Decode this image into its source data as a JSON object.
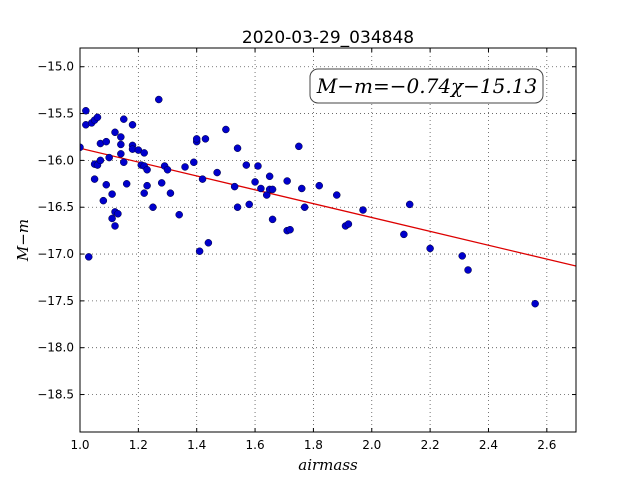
{
  "chart_data": {
    "type": "scatter",
    "title": "2020-03-29_034848",
    "xlabel": "airmass",
    "ylabel": "M−m",
    "annotation": "M−m=−0.74χ−15.13",
    "xlim": [
      1.0,
      2.7
    ],
    "ylim": [
      -18.9,
      -14.8
    ],
    "y_inverted": true,
    "grid": true,
    "xticks": [
      1.0,
      1.2,
      1.4,
      1.6,
      1.8,
      2.0,
      2.2,
      2.4,
      2.6
    ],
    "xtick_labels": [
      "1.0",
      "1.2",
      "1.4",
      "1.6",
      "1.8",
      "2.0",
      "2.2",
      "2.4",
      "2.6"
    ],
    "yticks": [
      -15.0,
      -15.5,
      -16.0,
      -16.5,
      -17.0,
      -17.5,
      -18.0,
      -18.5
    ],
    "ytick_labels": [
      "−15.0",
      "−15.5",
      "−16.0",
      "−16.5",
      "−17.0",
      "−17.5",
      "−18.0",
      "−18.5"
    ],
    "point_color": "#0000cc",
    "fit_color": "#dd0000",
    "fit": {
      "slope": -0.74,
      "intercept": -15.13
    },
    "points": [
      [
        1.0,
        -15.86
      ],
      [
        1.02,
        -15.47
      ],
      [
        1.02,
        -15.62
      ],
      [
        1.03,
        -17.03
      ],
      [
        1.04,
        -15.6
      ],
      [
        1.05,
        -15.57
      ],
      [
        1.05,
        -16.04
      ],
      [
        1.05,
        -16.2
      ],
      [
        1.06,
        -16.05
      ],
      [
        1.06,
        -15.54
      ],
      [
        1.07,
        -16.0
      ],
      [
        1.07,
        -15.82
      ],
      [
        1.08,
        -16.43
      ],
      [
        1.09,
        -15.8
      ],
      [
        1.09,
        -16.26
      ],
      [
        1.1,
        -15.97
      ],
      [
        1.11,
        -16.36
      ],
      [
        1.11,
        -16.62
      ],
      [
        1.12,
        -15.7
      ],
      [
        1.12,
        -16.55
      ],
      [
        1.12,
        -16.7
      ],
      [
        1.13,
        -16.57
      ],
      [
        1.14,
        -15.83
      ],
      [
        1.14,
        -15.93
      ],
      [
        1.14,
        -15.75
      ],
      [
        1.15,
        -16.02
      ],
      [
        1.15,
        -15.56
      ],
      [
        1.16,
        -16.25
      ],
      [
        1.18,
        -15.62
      ],
      [
        1.18,
        -15.84
      ],
      [
        1.18,
        -15.88
      ],
      [
        1.2,
        -15.89
      ],
      [
        1.21,
        -16.05
      ],
      [
        1.22,
        -16.06
      ],
      [
        1.22,
        -15.92
      ],
      [
        1.22,
        -16.35
      ],
      [
        1.23,
        -16.27
      ],
      [
        1.23,
        -16.1
      ],
      [
        1.25,
        -16.5
      ],
      [
        1.27,
        -15.35
      ],
      [
        1.28,
        -16.24
      ],
      [
        1.29,
        -16.06
      ],
      [
        1.3,
        -16.1
      ],
      [
        1.31,
        -16.35
      ],
      [
        1.34,
        -16.58
      ],
      [
        1.36,
        -16.07
      ],
      [
        1.39,
        -16.02
      ],
      [
        1.4,
        -15.8
      ],
      [
        1.4,
        -15.77
      ],
      [
        1.41,
        -16.97
      ],
      [
        1.42,
        -16.2
      ],
      [
        1.43,
        -15.77
      ],
      [
        1.44,
        -16.88
      ],
      [
        1.47,
        -16.13
      ],
      [
        1.5,
        -15.67
      ],
      [
        1.53,
        -16.28
      ],
      [
        1.54,
        -15.87
      ],
      [
        1.54,
        -16.5
      ],
      [
        1.57,
        -16.05
      ],
      [
        1.58,
        -16.47
      ],
      [
        1.6,
        -16.23
      ],
      [
        1.61,
        -16.06
      ],
      [
        1.62,
        -16.3
      ],
      [
        1.64,
        -16.37
      ],
      [
        1.65,
        -16.31
      ],
      [
        1.65,
        -16.17
      ],
      [
        1.66,
        -16.63
      ],
      [
        1.66,
        -16.31
      ],
      [
        1.71,
        -16.75
      ],
      [
        1.71,
        -16.22
      ],
      [
        1.72,
        -16.74
      ],
      [
        1.75,
        -15.85
      ],
      [
        1.76,
        -16.3
      ],
      [
        1.77,
        -16.5
      ],
      [
        1.82,
        -16.27
      ],
      [
        1.88,
        -16.37
      ],
      [
        1.91,
        -16.7
      ],
      [
        1.92,
        -16.68
      ],
      [
        1.97,
        -16.53
      ],
      [
        2.11,
        -16.79
      ],
      [
        2.13,
        -16.47
      ],
      [
        2.2,
        -16.94
      ],
      [
        2.31,
        -17.02
      ],
      [
        2.33,
        -17.17
      ],
      [
        2.56,
        -17.53
      ]
    ]
  }
}
